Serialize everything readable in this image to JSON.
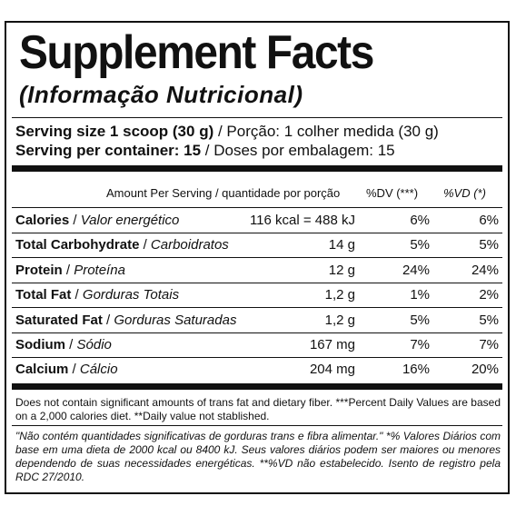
{
  "title": "Supplement Facts",
  "subtitle": "(Informação Nutricional)",
  "serving": {
    "size_bold": "Serving size 1 scoop (30 g)",
    "size_rest": " / Porção: 1 colher medida (30 g)",
    "container_bold": "Serving per container: 15",
    "container_rest": " / Doses por embalagem: 15"
  },
  "header": {
    "amount": "Amount Per Serving / quantidade por porção",
    "dv1": "%DV (***)",
    "dv2": "%VD (*)"
  },
  "rows": [
    {
      "en": "Calories",
      "pt": "Valor energético",
      "amount": "116 kcal = 488 kJ",
      "dv1": "6%",
      "dv2": "6%"
    },
    {
      "en": "Total Carbohydrate",
      "pt": "Carboidratos",
      "amount": "14 g",
      "dv1": "5%",
      "dv2": "5%"
    },
    {
      "en": "Protein",
      "pt": "Proteína",
      "amount": "12 g",
      "dv1": "24%",
      "dv2": "24%"
    },
    {
      "en": "Total Fat",
      "pt": "Gorduras Totais",
      "amount": "1,2 g",
      "dv1": "1%",
      "dv2": "2%"
    },
    {
      "en": "Saturated Fat",
      "pt": "Gorduras Saturadas",
      "amount": "1,2 g",
      "dv1": "5%",
      "dv2": "5%"
    },
    {
      "en": "Sodium",
      "pt": "Sódio",
      "amount": "167 mg",
      "dv1": "7%",
      "dv2": "7%"
    },
    {
      "en": "Calcium",
      "pt": "Cálcio",
      "amount": "204 mg",
      "dv1": "16%",
      "dv2": "20%"
    }
  ],
  "separator": " / ",
  "footnote_en": "Does not contain significant amounts of trans fat and dietary fiber. ***Percent Daily Values are based on a 2,000 calories diet. **Daily value not stablished.",
  "footnote_pt": "\"Não contém quantidades significativas de gorduras trans e fibra alimentar.\" *% Valores Diários com base em uma dieta de 2000 kcal ou 8400 kJ. Seus valores diários podem ser maiores ou menores dependendo de suas necessidades energéticas. **%VD não estabelecido. Isento de registro pela RDC 27/2010."
}
